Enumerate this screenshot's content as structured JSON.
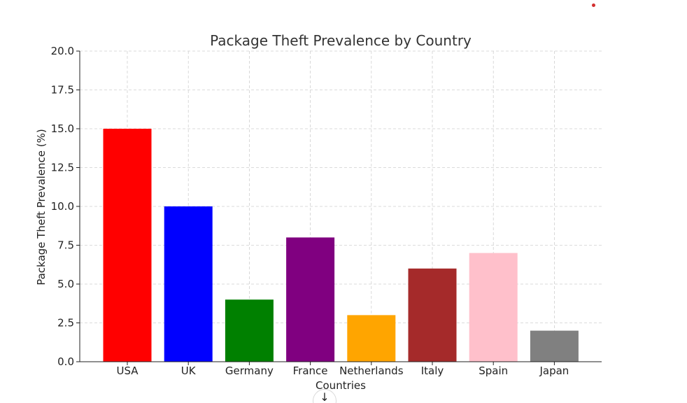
{
  "chart_data": {
    "type": "bar",
    "title": "Package Theft Prevalence by Country",
    "xlabel": "Countries",
    "ylabel": "Package Theft Prevalence (%)",
    "categories": [
      "USA",
      "UK",
      "Germany",
      "France",
      "Netherlands",
      "Italy",
      "Spain",
      "Japan"
    ],
    "values": [
      15,
      10,
      4,
      8,
      3,
      6,
      7,
      2
    ],
    "colors": [
      "#ff0000",
      "#0000ff",
      "#008000",
      "#800080",
      "#ffa500",
      "#a52a2a",
      "#ffc0cb",
      "#808080"
    ],
    "ylim": [
      0,
      20
    ],
    "yticks": [
      "0.0",
      "2.5",
      "5.0",
      "7.5",
      "10.0",
      "12.5",
      "15.0",
      "17.5",
      "20.0"
    ],
    "grid": true,
    "grid_style": "dashed",
    "legend": "none"
  },
  "controls": {
    "scroll_down_icon": "arrow-down-icon",
    "scroll_down_glyph": "↓",
    "status_dot_color": "#d32f2f"
  }
}
